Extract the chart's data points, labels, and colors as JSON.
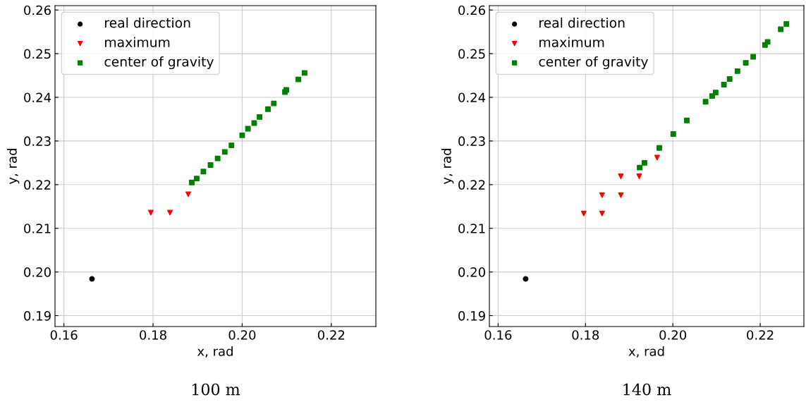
{
  "chart_data": [
    {
      "type": "scatter",
      "xlabel": "x, rad",
      "ylabel": "y, rad",
      "annotations": [
        "100 m"
      ],
      "xlim": [
        0.158,
        0.23
      ],
      "ylim": [
        0.1875,
        0.261
      ],
      "xticks": [
        0.16,
        0.18,
        {
          "value": 0.2,
          "label": "0.20"
        },
        0.22
      ],
      "yticks": [
        0.19,
        {
          "value": 0.2,
          "label": "0.20"
        },
        0.21,
        0.22,
        0.23,
        0.24,
        0.25,
        0.26
      ],
      "grid": true,
      "legend": "top left",
      "series": [
        {
          "name": "real direction",
          "color": "#000000",
          "marker": "circle",
          "x": [
            0.1663
          ],
          "values": [
            0.1984
          ]
        },
        {
          "name": "maximum",
          "color": "#ff0000",
          "marker": "triangle",
          "x": [
            0.1795,
            0.1838,
            0.1879
          ],
          "values": [
            0.2136,
            0.2136,
            0.2178
          ]
        },
        {
          "name": "center of gravity",
          "color": "#008000",
          "marker": "square",
          "x": [
            0.1887,
            0.1898,
            0.1913,
            0.1929,
            0.1945,
            0.1961,
            0.1976,
            0.2,
            0.2013,
            0.2027,
            0.2039,
            0.2058,
            0.2071,
            0.2096,
            0.2099,
            0.2126,
            0.214
          ],
          "values": [
            0.2205,
            0.2214,
            0.223,
            0.2245,
            0.226,
            0.2275,
            0.229,
            0.2313,
            0.2328,
            0.2341,
            0.2355,
            0.2373,
            0.2386,
            0.2412,
            0.2417,
            0.2441,
            0.2456
          ]
        }
      ]
    },
    {
      "type": "scatter",
      "xlabel": "x, rad",
      "ylabel": "y, rad",
      "annotations": [
        "140 m"
      ],
      "xlim": [
        0.158,
        0.23
      ],
      "ylim": [
        0.1875,
        0.261
      ],
      "xticks": [
        0.16,
        0.18,
        {
          "value": 0.2,
          "label": "0.20"
        },
        0.22
      ],
      "yticks": [
        0.19,
        {
          "value": 0.2,
          "label": "0.20"
        },
        0.21,
        0.22,
        0.23,
        0.24,
        0.25,
        0.26
      ],
      "grid": true,
      "legend": "top left",
      "series": [
        {
          "name": "real direction",
          "color": "#000000",
          "marker": "circle",
          "x": [
            0.1663
          ],
          "values": [
            0.1984
          ]
        },
        {
          "name": "maximum",
          "color": "#ff0000",
          "marker": "triangle",
          "x": [
            0.1796,
            0.1838,
            0.1838,
            0.1881,
            0.1881,
            0.1923,
            0.1964
          ],
          "values": [
            0.2134,
            0.2134,
            0.2176,
            0.2176,
            0.2219,
            0.2219,
            0.2262
          ]
        },
        {
          "name": "center of gravity",
          "color": "#008000",
          "marker": "square",
          "x": [
            0.1924,
            0.1935,
            0.1969,
            0.2001,
            0.2032,
            0.2075,
            0.209,
            0.2098,
            0.2117,
            0.213,
            0.2148,
            0.2167,
            0.2184,
            0.2211,
            0.2217,
            0.2247,
            0.226
          ],
          "values": [
            0.2239,
            0.225,
            0.2284,
            0.2316,
            0.2347,
            0.239,
            0.2403,
            0.2411,
            0.2429,
            0.2442,
            0.246,
            0.2479,
            0.2493,
            0.252,
            0.2527,
            0.2556,
            0.2568
          ]
        }
      ]
    }
  ]
}
